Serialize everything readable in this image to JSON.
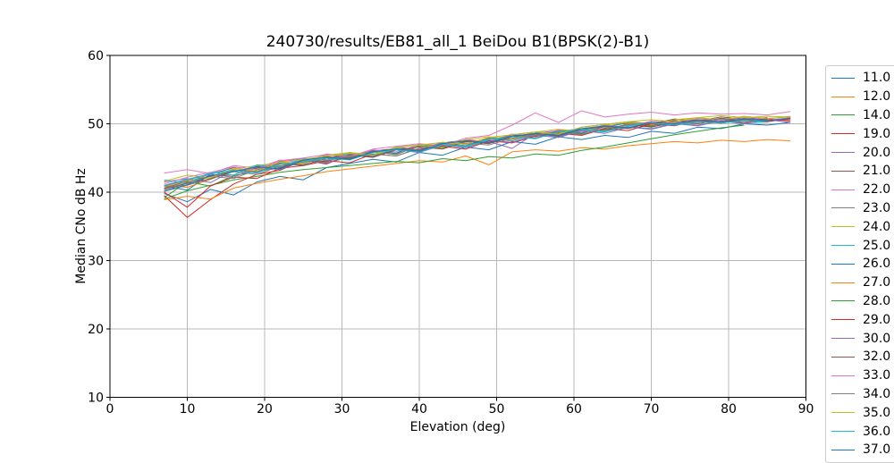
{
  "colors": {
    "background": "#ffffff",
    "grid": "#b8b8b8",
    "spine": "#000000",
    "tick_label": "#000000",
    "legend_border": "#cccccc"
  },
  "chart_data": {
    "type": "line",
    "title": "240730/results/EB81_all_1 BeiDou B1(BPSK(2)-B1)",
    "xlabel": "Elevation (deg)",
    "ylabel": "Median CNo dB Hz",
    "xlim": [
      0,
      90
    ],
    "ylim": [
      10,
      60
    ],
    "xticks": [
      0,
      10,
      20,
      30,
      40,
      50,
      60,
      70,
      80,
      90
    ],
    "yticks": [
      10,
      20,
      30,
      40,
      50,
      60
    ],
    "grid": true,
    "legend_position": "outside-right",
    "legend_note": "last entry clipped at image bottom",
    "x": [
      7,
      10,
      13,
      16,
      19,
      22,
      25,
      28,
      31,
      34,
      37,
      40,
      43,
      46,
      49,
      52,
      55,
      58,
      61,
      64,
      67,
      70,
      73,
      76,
      79,
      82,
      85,
      88
    ],
    "series": [
      {
        "name": "11.0",
        "color": "#1f77b4",
        "values": [
          40.9,
          40.3,
          42.6,
          43.6,
          42.8,
          44.3,
          44.0,
          45.5,
          45.0,
          46.1,
          45.7,
          47.0,
          46.7,
          47.6,
          47.1,
          48.4,
          48.1,
          49.0,
          48.6,
          49.6,
          50.1,
          49.7,
          50.4,
          50.2,
          50.8,
          50.5,
          50.8
        ]
      },
      {
        "name": "12.0",
        "color": "#ff7f0e",
        "values": [
          41.0,
          40.7,
          41.9,
          43.3,
          43.0,
          44.4,
          44.2,
          45.3,
          45.6,
          45.4,
          46.4,
          46.2,
          47.2,
          47.0,
          48.0,
          47.7,
          48.6,
          48.4,
          49.3,
          49.1,
          50.0,
          49.8,
          50.3,
          50.6,
          50.3,
          50.7,
          50.4,
          50.6
        ]
      },
      {
        "name": "14.0",
        "color": "#2ca02c",
        "values": [
          39.2,
          41.5,
          40.9,
          42.4,
          43.1,
          43.5,
          44.8,
          44.3,
          45.1,
          45.9,
          45.5,
          46.8,
          46.4,
          47.5,
          47.2,
          48.2,
          47.9,
          48.9,
          48.5,
          49.2,
          49.9,
          49.6,
          50.1,
          50.4,
          50.1,
          50.5,
          50.3
        ]
      },
      {
        "name": "19.0",
        "color": "#d62728",
        "values": [
          39.5,
          36.3,
          38.9,
          41.2,
          42.6,
          43.2,
          44.7,
          44.1,
          45.5,
          45.2,
          46.3,
          46.0,
          47.1,
          46.8,
          47.9,
          47.5,
          48.5,
          48.2,
          49.2,
          48.9,
          49.9,
          49.5,
          50.3,
          50.0,
          50.6,
          50.2,
          50.7,
          50.4
        ]
      },
      {
        "name": "20.0",
        "color": "#9467bd",
        "values": [
          41.5,
          42.0,
          41.4,
          43.2,
          42.9,
          44.5,
          44.9,
          44.4,
          45.8,
          45.4,
          46.6,
          46.2,
          47.3,
          47.0,
          47.4,
          46.4,
          48.6,
          49.0,
          48.7,
          49.7,
          49.4,
          50.2,
          49.9,
          50.6,
          50.3,
          50.8,
          50.5,
          50.9
        ]
      },
      {
        "name": "21.0",
        "color": "#8c564b",
        "values": [
          40.6,
          41.6,
          42.4,
          42.5,
          43.8,
          43.6,
          44.8,
          45.2,
          44.9,
          46.0,
          46.4,
          46.1,
          47.2,
          47.6,
          47.3,
          48.4,
          48.8,
          48.5,
          49.5,
          49.9,
          50.3,
          50.0,
          50.7,
          50.4,
          51.0,
          50.7,
          50.9
        ]
      },
      {
        "name": "22.0",
        "color": "#e377c2",
        "values": [
          42.8,
          43.3,
          42.7,
          43.9,
          43.5,
          44.7,
          44.3,
          45.6,
          45.2,
          46.2,
          45.9,
          46.9,
          46.6,
          47.7,
          47.4,
          48.5,
          48.2,
          49.1,
          48.8,
          49.8,
          49.5,
          50.4,
          50.1,
          50.8,
          50.5,
          51.0,
          50.7,
          51.1
        ]
      },
      {
        "name": "23.0",
        "color": "#7f7f7f",
        "values": [
          40.1,
          41.0,
          42.0,
          43.0,
          42.6,
          43.8,
          44.7,
          44.5,
          45.5,
          45.9,
          45.6,
          46.7,
          47.1,
          46.8,
          47.8,
          48.2,
          47.9,
          48.9,
          49.3,
          49.0,
          49.9,
          50.2,
          49.9,
          50.5,
          50.2,
          50.6,
          50.4
        ]
      },
      {
        "name": "24.0",
        "color": "#bcbd22",
        "values": [
          40.8,
          41.7,
          42.1,
          43.4,
          43.9,
          44.3,
          44.1,
          45.4,
          45.8,
          45.5,
          46.6,
          46.9,
          46.6,
          47.7,
          48.1,
          47.8,
          48.8,
          49.2,
          48.9,
          49.8,
          50.2,
          49.9,
          50.6,
          50.9,
          50.6,
          51.1,
          50.8,
          51.0
        ]
      },
      {
        "name": "25.0",
        "color": "#17becf",
        "values": [
          41.8,
          41.3,
          42.9,
          42.5,
          44.0,
          43.7,
          45.0,
          44.6,
          45.7,
          45.3,
          46.4,
          46.0,
          47.1,
          46.7,
          47.8,
          47.5,
          48.5,
          48.1,
          49.1,
          48.8,
          49.6,
          49.3,
          50.1,
          49.8,
          50.4,
          50.1,
          50.3
        ]
      },
      {
        "name": "26.0",
        "color": "#1f77b4",
        "values": [
          39.8,
          38.6,
          40.4,
          39.6,
          41.5,
          42.3,
          41.8,
          43.6,
          44.2,
          44.8,
          44.4,
          45.8,
          45.4,
          46.6,
          46.2,
          47.4,
          47.0,
          48.1,
          47.7,
          48.3,
          48.0,
          48.9,
          48.6,
          49.5,
          49.3,
          50.0,
          49.8,
          50.2
        ]
      },
      {
        "name": "27.0",
        "color": "#ff7f0e",
        "values": [
          38.9,
          39.4,
          39.0,
          40.6,
          41.3,
          41.9,
          42.4,
          43.0,
          43.4,
          43.8,
          44.2,
          44.6,
          44.4,
          45.3,
          44.0,
          45.9,
          46.2,
          46.0,
          46.5,
          46.3,
          46.8,
          47.1,
          47.4,
          47.2,
          47.6,
          47.4,
          47.7,
          47.5
        ]
      },
      {
        "name": "28.0",
        "color": "#2ca02c",
        "values": [
          39.0,
          40.2,
          41.0,
          41.8,
          42.3,
          42.9,
          43.3,
          43.6,
          43.9,
          44.2,
          44.5,
          44.3,
          44.9,
          44.6,
          45.2,
          45.0,
          45.6,
          45.4,
          46.1,
          46.6,
          47.2,
          47.8,
          48.4,
          48.9,
          49.4,
          49.8
        ]
      },
      {
        "name": "29.0",
        "color": "#d62728",
        "values": [
          40.0,
          37.8,
          40.9,
          42.2,
          42.0,
          43.5,
          43.9,
          44.6,
          44.3,
          45.6,
          45.3,
          46.4,
          46.7,
          46.3,
          47.5,
          47.2,
          48.2,
          48.6,
          48.3,
          49.3,
          49.0,
          50.0,
          49.7,
          50.5,
          50.1,
          50.7,
          50.3,
          50.8
        ]
      },
      {
        "name": "30.0",
        "color": "#9467bd",
        "values": [
          40.9,
          41.8,
          42.6,
          42.2,
          43.6,
          43.3,
          44.6,
          44.2,
          45.5,
          45.1,
          46.2,
          45.8,
          46.9,
          46.5,
          47.6,
          47.3,
          48.3,
          48.0,
          49.0,
          48.6,
          49.5,
          49.2,
          50.0,
          49.7,
          50.4,
          50.0,
          50.6,
          50.2
        ]
      },
      {
        "name": "32.0",
        "color": "#8c564b",
        "values": [
          40.4,
          41.3,
          41.9,
          43.1,
          43.5,
          44.2,
          43.9,
          45.0,
          45.4,
          45.1,
          46.2,
          46.6,
          46.3,
          47.4,
          47.1,
          48.1,
          48.5,
          48.2,
          49.2,
          49.6,
          49.3,
          50.1,
          50.5,
          50.2,
          50.8,
          50.5,
          50.7
        ]
      },
      {
        "name": "33.0",
        "color": "#e377c2",
        "values": [
          41.2,
          42.2,
          42.9,
          43.7,
          43.3,
          44.6,
          45.0,
          45.5,
          45.2,
          46.3,
          46.7,
          47.1,
          46.8,
          47.9,
          48.3,
          49.8,
          51.6,
          50.2,
          51.9,
          51.0,
          51.4,
          51.7,
          51.3,
          51.6,
          51.4,
          51.5,
          51.3,
          51.8
        ]
      },
      {
        "name": "34.0",
        "color": "#7f7f7f",
        "values": [
          40.5,
          41.4,
          42.3,
          42.0,
          43.3,
          43.9,
          44.4,
          44.8,
          45.2,
          45.6,
          45.3,
          46.4,
          46.8,
          47.2,
          46.9,
          47.9,
          48.3,
          48.7,
          48.4,
          49.4,
          49.8,
          50.1,
          49.8,
          50.4,
          50.7,
          50.4,
          50.6
        ]
      },
      {
        "name": "35.0",
        "color": "#bcbd22",
        "values": [
          41.6,
          42.5,
          42.1,
          43.5,
          43.1,
          44.4,
          44.8,
          45.3,
          45.7,
          45.4,
          46.5,
          46.9,
          47.3,
          47.0,
          48.0,
          48.4,
          48.8,
          48.5,
          49.5,
          49.9,
          50.3,
          50.6,
          50.3,
          50.9,
          51.2,
          50.9,
          51.1,
          51.0
        ]
      },
      {
        "name": "36.0",
        "color": "#17becf",
        "values": [
          41.0,
          41.9,
          42.7,
          43.2,
          42.8,
          44.1,
          44.5,
          45.0,
          44.7,
          45.8,
          46.2,
          45.9,
          47.0,
          46.6,
          47.7,
          48.1,
          47.8,
          48.8,
          49.2,
          48.9,
          49.7,
          50.1,
          49.8,
          50.3,
          50.1,
          50.5,
          50.4
        ]
      },
      {
        "name": "37.0",
        "color": "#1f77b4",
        "values": [
          40.2,
          41.1,
          42.4,
          43.0,
          43.7,
          43.4,
          44.7,
          45.1,
          44.8,
          45.9,
          46.3,
          46.0,
          47.1,
          47.5,
          47.2,
          48.2,
          48.6,
          48.3,
          49.3,
          49.7,
          49.4,
          50.2,
          50.0,
          50.6,
          50.3,
          50.7,
          50.5,
          50.7
        ]
      }
    ]
  }
}
